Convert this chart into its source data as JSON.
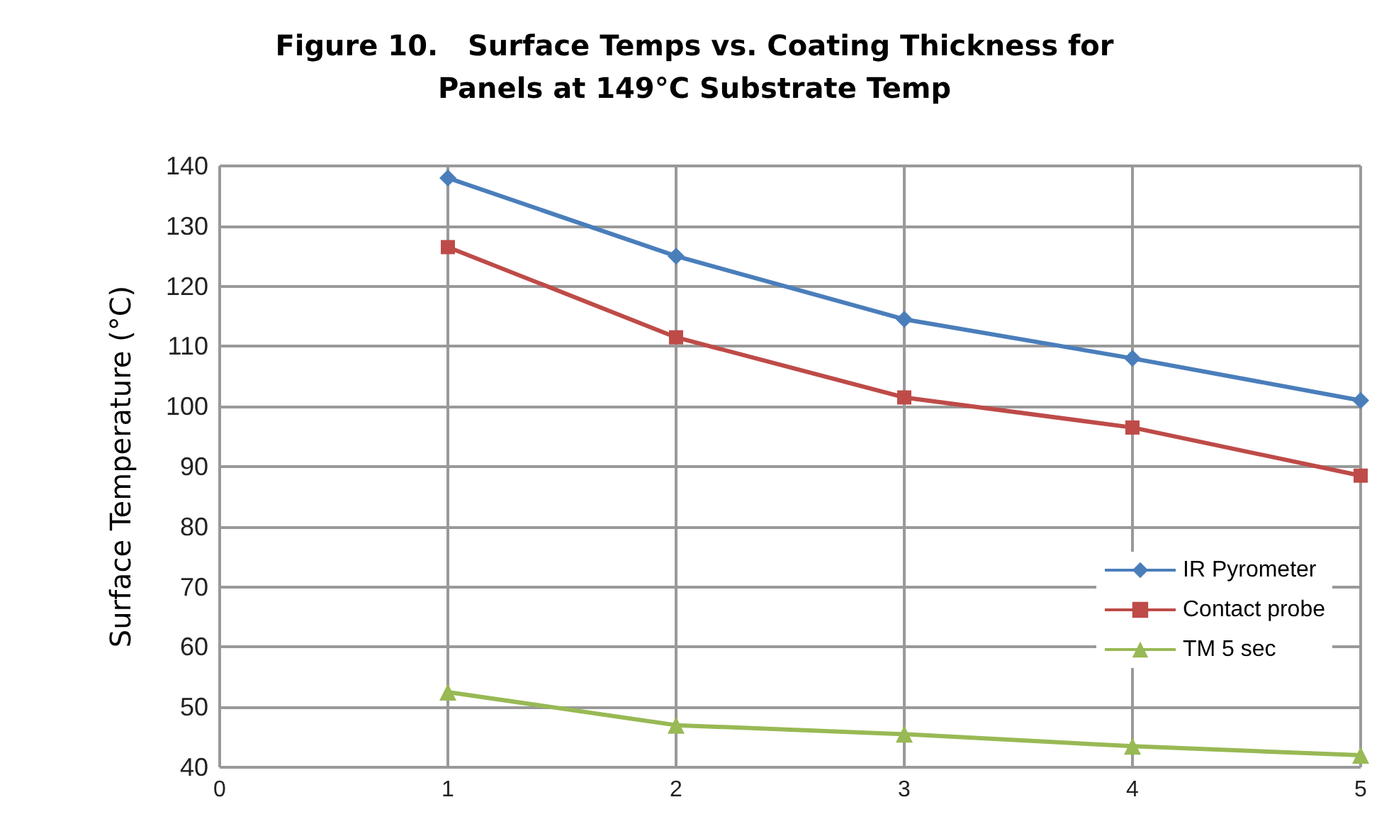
{
  "chart_data": {
    "type": "line",
    "title": "Figure 10.   Surface Temps vs. Coating Thickness for\nPanels at 149°C Substrate Temp",
    "ylabel": "Surface Temperature (°C)",
    "x": [
      1,
      2,
      3,
      4,
      5
    ],
    "series": [
      {
        "name": "IR Pyrometer",
        "color": "#4a7ebb",
        "marker": "diamond",
        "values": [
          138,
          125,
          114.5,
          108,
          101
        ]
      },
      {
        "name": "Contact probe",
        "color": "#be4b48",
        "marker": "square",
        "values": [
          126.5,
          111.5,
          101.5,
          96.5,
          88.5
        ]
      },
      {
        "name": "TM 5 sec",
        "color": "#98b954",
        "marker": "triangle",
        "values": [
          52.5,
          47,
          45.5,
          43.5,
          42
        ]
      }
    ],
    "xlim": [
      0,
      5
    ],
    "xticks": [
      0,
      1,
      2,
      3,
      4,
      5
    ],
    "ylim": [
      40,
      140
    ],
    "yticks": [
      40,
      50,
      60,
      70,
      80,
      90,
      100,
      110,
      120,
      130,
      140
    ],
    "grid": true,
    "legend": "bottom right",
    "line_style": "solid"
  }
}
